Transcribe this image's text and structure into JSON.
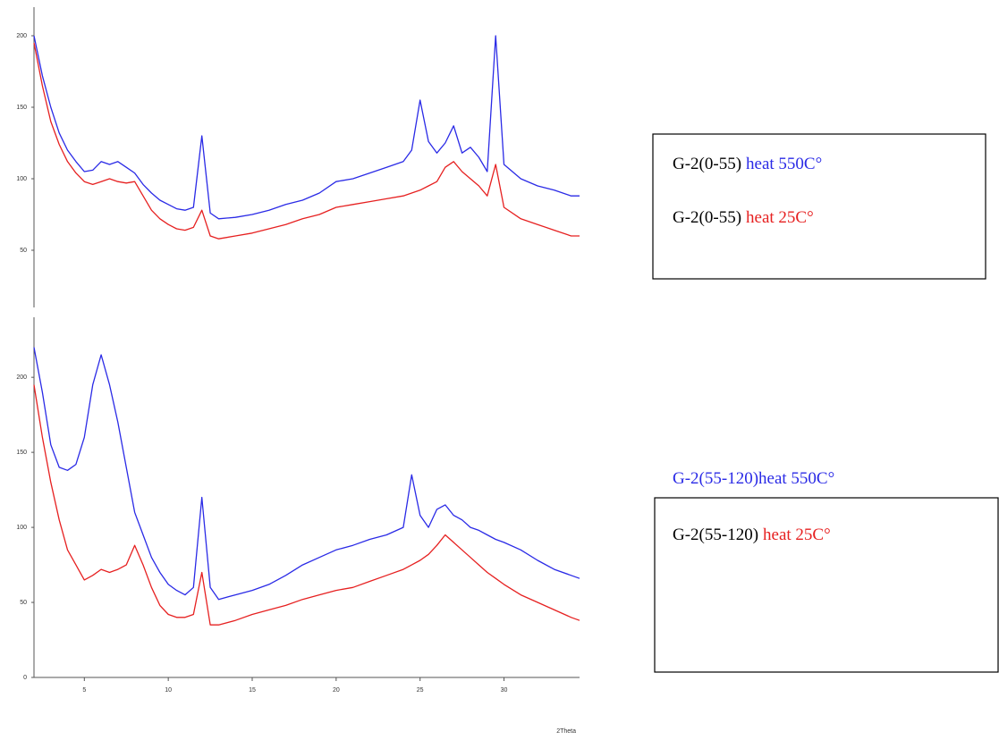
{
  "chart_data": [
    {
      "type": "line",
      "x": [
        2,
        2.5,
        3,
        3.5,
        4,
        4.5,
        5,
        5.5,
        6,
        6.5,
        7,
        7.5,
        8,
        8.5,
        9,
        9.5,
        10,
        10.5,
        11,
        11.5,
        12,
        12.5,
        13,
        14,
        15,
        16,
        17,
        18,
        19,
        20,
        21,
        22,
        23,
        24,
        24.5,
        25,
        25.5,
        26,
        26.5,
        27,
        27.5,
        28,
        28.5,
        29,
        29.5,
        30,
        31,
        32,
        33,
        34,
        34.5
      ],
      "xlim": [
        2,
        34.5
      ],
      "ylim": [
        10,
        220
      ],
      "yticks": [
        50,
        100,
        150,
        200
      ],
      "series": [
        {
          "name": [
            "G-2(0-55)",
            "heat 550C°"
          ],
          "color": "#2a2ae6",
          "values": [
            200,
            172,
            150,
            132,
            120,
            112,
            105,
            106,
            112,
            110,
            112,
            108,
            104,
            96,
            90,
            85,
            82,
            79,
            78,
            80,
            130,
            76,
            72,
            73,
            75,
            78,
            82,
            85,
            90,
            98,
            100,
            104,
            108,
            112,
            120,
            155,
            126,
            118,
            125,
            137,
            118,
            122,
            115,
            105,
            200,
            110,
            100,
            95,
            92,
            88,
            88
          ]
        },
        {
          "name": [
            "G-2(0-55)",
            "heat 25C°"
          ],
          "color": "#e62020",
          "values": [
            195,
            165,
            140,
            124,
            112,
            104,
            98,
            96,
            98,
            100,
            98,
            97,
            98,
            88,
            78,
            72,
            68,
            65,
            64,
            66,
            78,
            60,
            58,
            60,
            62,
            65,
            68,
            72,
            75,
            80,
            82,
            84,
            86,
            88,
            90,
            92,
            95,
            98,
            108,
            112,
            105,
            100,
            95,
            88,
            110,
            80,
            72,
            68,
            64,
            60,
            60
          ]
        }
      ]
    },
    {
      "type": "line",
      "x": [
        2,
        2.5,
        3,
        3.5,
        4,
        4.5,
        5,
        5.5,
        6,
        6.5,
        7,
        7.5,
        8,
        8.5,
        9,
        9.5,
        10,
        10.5,
        11,
        11.5,
        12,
        12.5,
        13,
        14,
        15,
        16,
        17,
        18,
        19,
        20,
        21,
        22,
        23,
        24,
        24.5,
        25,
        25.5,
        26,
        26.5,
        27,
        27.5,
        28,
        28.5,
        29,
        29.5,
        30,
        31,
        32,
        33,
        34,
        34.5
      ],
      "xlim": [
        2,
        34.5
      ],
      "xticks": [
        5,
        10,
        15,
        20,
        25,
        30
      ],
      "xlabel": "2Theta",
      "ylim": [
        0,
        240
      ],
      "yticks": [
        0,
        50,
        100,
        150,
        200
      ],
      "series": [
        {
          "name": [
            "G-2(55-120)heat 550C°"
          ],
          "color": "#2a2ae6",
          "values": [
            220,
            190,
            155,
            140,
            138,
            142,
            160,
            195,
            215,
            195,
            170,
            140,
            110,
            95,
            80,
            70,
            62,
            58,
            55,
            60,
            120,
            60,
            52,
            55,
            58,
            62,
            68,
            75,
            80,
            85,
            88,
            92,
            95,
            100,
            135,
            108,
            100,
            112,
            115,
            108,
            105,
            100,
            98,
            95,
            92,
            90,
            85,
            78,
            72,
            68,
            66
          ]
        },
        {
          "name": [
            "G-2(55-120)",
            "heat 25C°"
          ],
          "color": "#e62020",
          "values": [
            195,
            160,
            130,
            105,
            85,
            75,
            65,
            68,
            72,
            70,
            72,
            75,
            88,
            75,
            60,
            48,
            42,
            40,
            40,
            42,
            70,
            35,
            35,
            38,
            42,
            45,
            48,
            52,
            55,
            58,
            60,
            64,
            68,
            72,
            75,
            78,
            82,
            88,
            95,
            90,
            85,
            80,
            75,
            70,
            66,
            62,
            55,
            50,
            45,
            40,
            38
          ]
        }
      ]
    }
  ]
}
